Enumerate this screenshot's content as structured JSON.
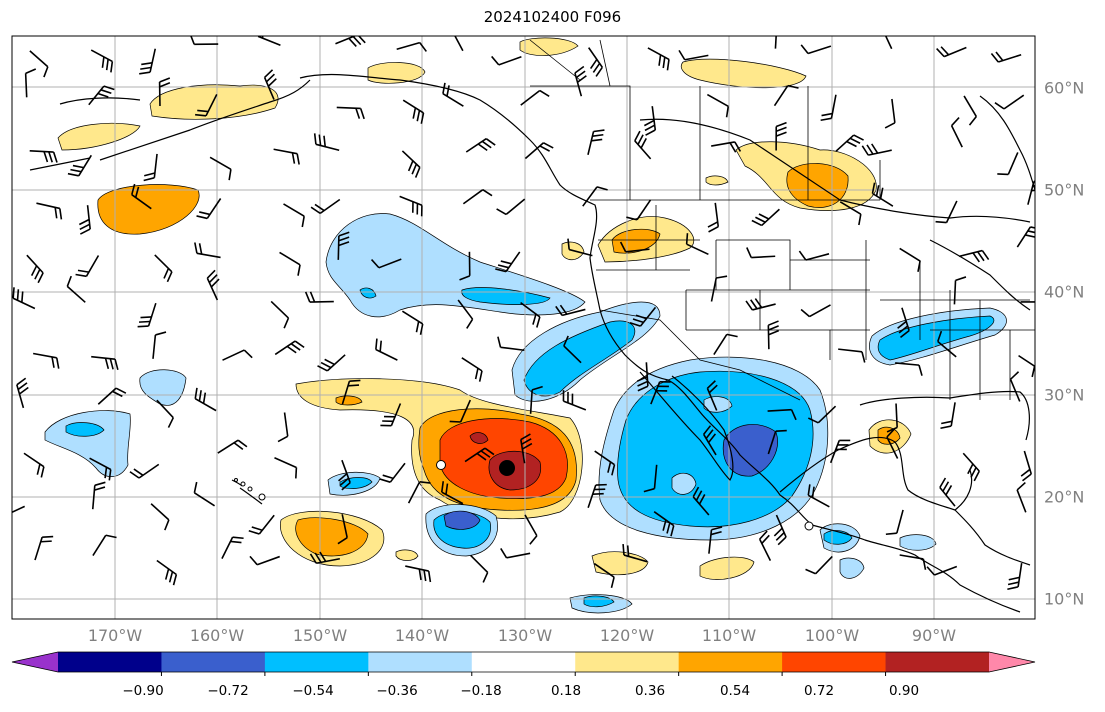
{
  "title": "2024102400 F096",
  "longitude_labels": [
    "170°W",
    "160°W",
    "150°W",
    "140°W",
    "130°W",
    "120°W",
    "110°W",
    "100°W",
    "90°W"
  ],
  "latitude_labels": [
    "60°N",
    "50°N",
    "40°N",
    "30°N",
    "20°N",
    "10°N"
  ],
  "colorbar": {
    "ticks": [
      "−0.90",
      "−0.72",
      "−0.54",
      "−0.36",
      "−0.18",
      "0.18",
      "0.36",
      "0.54",
      "0.72",
      "0.90"
    ],
    "colors": [
      "#9932cc",
      "#00008b",
      "#3a5fcd",
      "#00bfff",
      "#afdfff",
      "#ffffff",
      "#ffe88c",
      "#ffa500",
      "#ff4500",
      "#b22222",
      "#ff88aa"
    ]
  },
  "colors": {
    "coastline": "#000000",
    "grid": "#b0b0b0",
    "axis_label": "#808080"
  }
}
